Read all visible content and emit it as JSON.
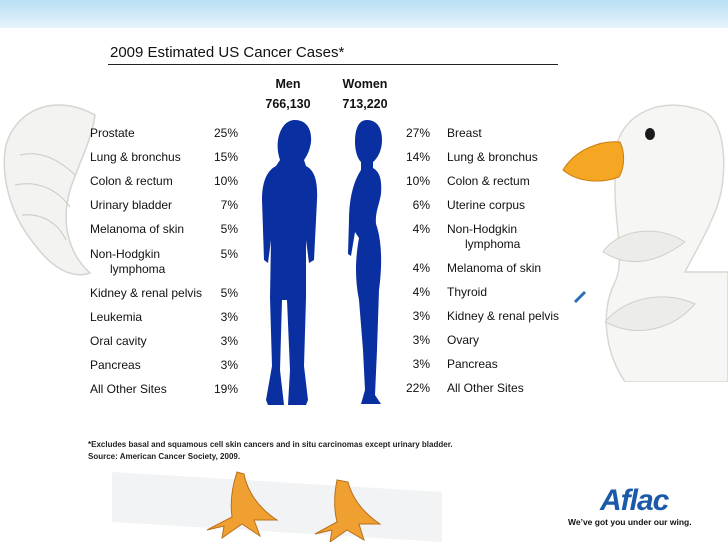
{
  "title": "2009 Estimated US Cancer Cases*",
  "men": {
    "label": "Men",
    "total": "766,130"
  },
  "women": {
    "label": "Women",
    "total": "713,220"
  },
  "men_rows": [
    {
      "site": "Prostate",
      "pct": "25%"
    },
    {
      "site": "Lung & bronchus",
      "pct": "15%"
    },
    {
      "site": "Colon & rectum",
      "pct": "10%"
    },
    {
      "site": "Urinary bladder",
      "pct": "7%"
    },
    {
      "site": "Melanoma of skin",
      "pct": "5%"
    },
    {
      "site": "Non-Hodgkin",
      "site2": "lymphoma",
      "pct": "5%"
    },
    {
      "site": "Kidney & renal pelvis",
      "pct": "5%"
    },
    {
      "site": "Leukemia",
      "pct": "3%"
    },
    {
      "site": "Oral cavity",
      "pct": "3%"
    },
    {
      "site": "Pancreas",
      "pct": "3%"
    },
    {
      "site": "All Other Sites",
      "pct": "19%"
    }
  ],
  "women_rows": [
    {
      "site": "Breast",
      "pct": "27%"
    },
    {
      "site": "Lung & bronchus",
      "pct": "14%"
    },
    {
      "site": "Colon & rectum",
      "pct": "10%"
    },
    {
      "site": "Uterine corpus",
      "pct": "6%"
    },
    {
      "site": "Non-Hodgkin",
      "site2": "lymphoma",
      "pct": "4%"
    },
    {
      "site": "Melanoma of skin",
      "pct": "4%"
    },
    {
      "site": "Thyroid",
      "pct": "4%"
    },
    {
      "site": "Kidney & renal pelvis",
      "pct": "3%"
    },
    {
      "site": "Ovary",
      "pct": "3%"
    },
    {
      "site": "Pancreas",
      "pct": "3%"
    },
    {
      "site": "All Other Sites",
      "pct": "22%"
    }
  ],
  "footnote": "*Excludes basal and squamous cell skin cancers and in situ carcinomas except urinary bladder.",
  "source": "Source: American Cancer Society, 2009.",
  "brand": {
    "logo": "Aflac",
    "tagline": "We’ve got you under our wing."
  },
  "colors": {
    "silhouette": "#0a2fa0",
    "duck_bill": "#f5a623",
    "band": "#b9dff4",
    "logo_blue": "#1a5aa8"
  },
  "icons": [
    "duck-wing-left-icon",
    "duck-head-icon",
    "duck-feet-icon",
    "man-silhouette-icon",
    "woman-silhouette-icon"
  ]
}
